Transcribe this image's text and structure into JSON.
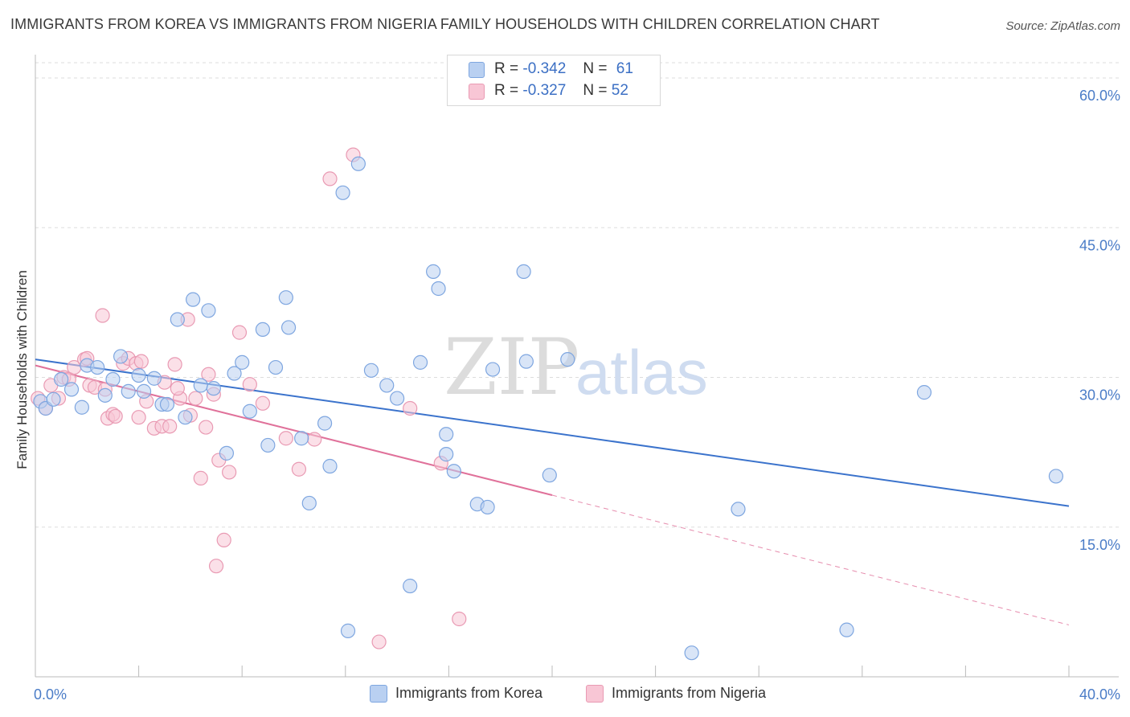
{
  "header": {
    "title": "IMMIGRANTS FROM KOREA VS IMMIGRANTS FROM NIGERIA FAMILY HOUSEHOLDS WITH CHILDREN CORRELATION CHART",
    "source": "Source: ZipAtlas.com"
  },
  "watermark": {
    "zip": "ZIP",
    "atlas": "atlas"
  },
  "legend": {
    "korea": {
      "r_label": "R =",
      "r_value": "-0.342",
      "n_label": "N =",
      "n_value": "61",
      "fill": "#b9d0f1",
      "stroke": "#7ea6e0"
    },
    "nigeria": {
      "r_label": "R =",
      "r_value": "-0.327",
      "n_label": "N =",
      "n_value": "52",
      "fill": "#f8c6d5",
      "stroke": "#e99ab3"
    }
  },
  "bottom_legend": {
    "korea": "Immigrants from Korea",
    "nigeria": "Immigrants from Nigeria"
  },
  "chart_data": {
    "type": "scatter",
    "title": "IMMIGRANTS FROM KOREA VS IMMIGRANTS FROM NIGERIA FAMILY HOUSEHOLDS WITH CHILDREN CORRELATION CHART",
    "xlabel": "",
    "ylabel": "Family Households with Children",
    "xlim": [
      0,
      40
    ],
    "ylim": [
      0,
      62
    ],
    "x_ticks": [
      "0.0%",
      "40.0%"
    ],
    "y_ticks": [
      {
        "value": 15,
        "label": "15.0%"
      },
      {
        "value": 30,
        "label": "30.0%"
      },
      {
        "value": 45,
        "label": "45.0%"
      },
      {
        "value": 60,
        "label": "60.0%"
      }
    ],
    "grid": true,
    "colors": {
      "korea": "#3b73cc",
      "nigeria": "#e0719a"
    },
    "series": [
      {
        "name": "Immigrants from Korea",
        "trend": {
          "x0": 0,
          "y0": 31.8,
          "x1": 40,
          "y1": 17.1
        },
        "points": [
          [
            0.2,
            27.6
          ],
          [
            0.4,
            26.9
          ],
          [
            0.7,
            27.8
          ],
          [
            1.0,
            29.8
          ],
          [
            1.4,
            28.8
          ],
          [
            1.8,
            27.0
          ],
          [
            2.0,
            31.2
          ],
          [
            2.4,
            31.0
          ],
          [
            2.7,
            28.2
          ],
          [
            3.0,
            29.8
          ],
          [
            3.3,
            32.1
          ],
          [
            3.6,
            28.6
          ],
          [
            4.0,
            30.2
          ],
          [
            4.2,
            28.6
          ],
          [
            4.6,
            29.9
          ],
          [
            4.9,
            27.3
          ],
          [
            5.1,
            27.3
          ],
          [
            5.5,
            35.8
          ],
          [
            5.8,
            26.0
          ],
          [
            6.1,
            37.8
          ],
          [
            6.4,
            29.2
          ],
          [
            6.7,
            36.7
          ],
          [
            6.9,
            28.9
          ],
          [
            7.4,
            22.4
          ],
          [
            7.7,
            30.4
          ],
          [
            8.0,
            31.5
          ],
          [
            8.3,
            26.6
          ],
          [
            8.8,
            34.8
          ],
          [
            9.0,
            23.2
          ],
          [
            9.3,
            31.0
          ],
          [
            9.7,
            38.0
          ],
          [
            9.8,
            35.0
          ],
          [
            10.3,
            23.9
          ],
          [
            10.6,
            17.4
          ],
          [
            11.2,
            25.4
          ],
          [
            11.4,
            21.1
          ],
          [
            11.9,
            48.5
          ],
          [
            12.1,
            4.6
          ],
          [
            12.5,
            51.4
          ],
          [
            13.0,
            30.7
          ],
          [
            13.6,
            29.2
          ],
          [
            14.0,
            27.9
          ],
          [
            14.5,
            9.1
          ],
          [
            14.9,
            31.5
          ],
          [
            15.4,
            40.6
          ],
          [
            15.6,
            38.9
          ],
          [
            15.9,
            24.3
          ],
          [
            15.9,
            22.3
          ],
          [
            16.2,
            20.6
          ],
          [
            17.1,
            17.3
          ],
          [
            17.5,
            17.0
          ],
          [
            17.7,
            30.8
          ],
          [
            18.9,
            40.6
          ],
          [
            19.0,
            31.6
          ],
          [
            19.9,
            20.2
          ],
          [
            20.6,
            31.8
          ],
          [
            25.4,
            2.4
          ],
          [
            27.2,
            16.8
          ],
          [
            31.4,
            4.7
          ],
          [
            34.4,
            28.5
          ],
          [
            39.5,
            20.1
          ]
        ]
      },
      {
        "name": "Immigrants from Nigeria",
        "trend": {
          "x0": 0,
          "y0": 31.2,
          "x1": 20.0,
          "y1": 18.2,
          "dash_x1": 40,
          "dash_y1": 5.2
        },
        "points": [
          [
            0.1,
            27.9
          ],
          [
            0.4,
            26.9
          ],
          [
            0.6,
            29.2
          ],
          [
            0.9,
            27.9
          ],
          [
            1.1,
            30.0
          ],
          [
            1.3,
            29.8
          ],
          [
            1.5,
            31.0
          ],
          [
            1.9,
            31.8
          ],
          [
            2.0,
            31.9
          ],
          [
            2.1,
            29.2
          ],
          [
            2.3,
            29.0
          ],
          [
            2.7,
            28.8
          ],
          [
            2.6,
            36.2
          ],
          [
            2.8,
            25.9
          ],
          [
            3.0,
            26.3
          ],
          [
            3.1,
            26.1
          ],
          [
            3.4,
            31.4
          ],
          [
            3.6,
            31.9
          ],
          [
            3.9,
            31.4
          ],
          [
            4.0,
            26.0
          ],
          [
            4.1,
            31.6
          ],
          [
            4.3,
            27.6
          ],
          [
            4.6,
            24.9
          ],
          [
            4.9,
            25.1
          ],
          [
            5.0,
            29.5
          ],
          [
            5.2,
            25.1
          ],
          [
            5.4,
            31.3
          ],
          [
            5.6,
            27.9
          ],
          [
            5.9,
            35.8
          ],
          [
            6.0,
            26.2
          ],
          [
            6.2,
            27.9
          ],
          [
            6.6,
            25.0
          ],
          [
            6.7,
            30.3
          ],
          [
            6.9,
            28.3
          ],
          [
            7.1,
            21.7
          ],
          [
            7.3,
            13.7
          ],
          [
            7.0,
            11.1
          ],
          [
            7.5,
            20.5
          ],
          [
            7.9,
            34.5
          ],
          [
            8.3,
            29.3
          ],
          [
            8.8,
            27.4
          ],
          [
            9.7,
            23.9
          ],
          [
            10.2,
            20.8
          ],
          [
            10.8,
            23.8
          ],
          [
            11.4,
            49.9
          ],
          [
            12.3,
            52.3
          ],
          [
            13.3,
            3.5
          ],
          [
            14.5,
            26.9
          ],
          [
            15.7,
            21.4
          ],
          [
            16.4,
            5.8
          ],
          [
            6.4,
            19.9
          ],
          [
            5.5,
            28.9
          ]
        ]
      }
    ]
  }
}
